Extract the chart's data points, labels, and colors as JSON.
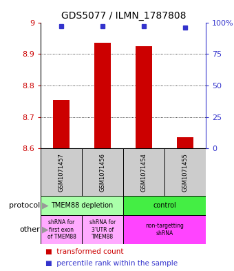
{
  "title": "GDS5077 / ILMN_1787808",
  "samples": [
    "GSM1071457",
    "GSM1071456",
    "GSM1071454",
    "GSM1071455"
  ],
  "bar_values": [
    8.755,
    8.935,
    8.925,
    8.635
  ],
  "bar_base": 8.6,
  "blue_values": [
    97,
    97,
    97,
    96
  ],
  "ylim": [
    8.6,
    9.0
  ],
  "yticks_left": [
    8.6,
    8.7,
    8.8,
    8.9,
    9.0
  ],
  "yticks_left_labels": [
    "8.6",
    "8.7",
    "8.8",
    "8.9",
    "9"
  ],
  "yticks_right": [
    0,
    25,
    50,
    75,
    100
  ],
  "yticks_right_labels": [
    "0",
    "25",
    "50",
    "75",
    "100%"
  ],
  "bar_color": "#cc0000",
  "blue_color": "#3333cc",
  "grid_lines": [
    8.7,
    8.8,
    8.9
  ],
  "protocol_labels": [
    "TMEM88 depletion",
    "control"
  ],
  "protocol_color_left": "#aaffaa",
  "protocol_color_right": "#44ee44",
  "other_labels": [
    "shRNA for\nfirst exon\nof TMEM88",
    "shRNA for\n3'UTR of\nTMEM88",
    "non-targetting\nshRNA"
  ],
  "other_color_left": "#ffaaff",
  "other_color_right": "#ff44ff",
  "sample_bg_color": "#cccccc",
  "bar_width": 0.4,
  "title_fontsize": 10,
  "tick_fontsize": 8,
  "sample_fontsize": 6,
  "label_fontsize": 8,
  "legend_fontsize": 7.5
}
